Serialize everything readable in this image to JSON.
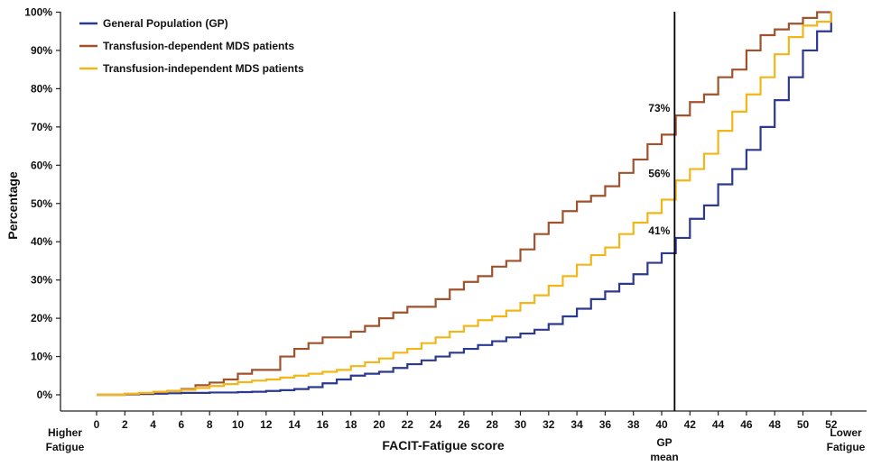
{
  "chart_data": {
    "type": "line",
    "step": true,
    "xlabel": "FACIT-Fatigue score",
    "ylabel": "Percentage",
    "xlim": [
      0,
      52
    ],
    "ylim": [
      0,
      100
    ],
    "x_ticks": [
      0,
      2,
      4,
      6,
      8,
      10,
      12,
      14,
      16,
      18,
      20,
      22,
      24,
      26,
      28,
      30,
      32,
      34,
      36,
      38,
      40,
      42,
      44,
      46,
      48,
      50,
      52
    ],
    "y_ticks": [
      0,
      10,
      20,
      30,
      40,
      50,
      60,
      70,
      80,
      90,
      100
    ],
    "y_tick_labels": [
      "0%",
      "10%",
      "20%",
      "30%",
      "40%",
      "50%",
      "60%",
      "70%",
      "80%",
      "90%",
      "100%"
    ],
    "grid": false,
    "legend_position": "top-left",
    "left_end_label": [
      "Higher",
      "Fatigue"
    ],
    "right_end_label": [
      "Lower",
      "Fatigue"
    ],
    "reference_line": {
      "x": 41,
      "label": [
        "GP",
        "mean"
      ]
    },
    "annotations": [
      {
        "text": "73%",
        "x": 41,
        "y": 73
      },
      {
        "text": "56%",
        "x": 41,
        "y": 56
      },
      {
        "text": "41%",
        "x": 41,
        "y": 41
      }
    ],
    "series": [
      {
        "name": "General Population (GP)",
        "color": "#2b3990",
        "x": [
          0,
          1,
          2,
          3,
          4,
          5,
          6,
          7,
          8,
          9,
          10,
          11,
          12,
          13,
          14,
          15,
          16,
          17,
          18,
          19,
          20,
          21,
          22,
          23,
          24,
          25,
          26,
          27,
          28,
          29,
          30,
          31,
          32,
          33,
          34,
          35,
          36,
          37,
          38,
          39,
          40,
          41,
          42,
          43,
          44,
          45,
          46,
          47,
          48,
          49,
          50,
          51,
          52
        ],
        "values": [
          0,
          0,
          0.1,
          0.2,
          0.3,
          0.4,
          0.5,
          0.5,
          0.6,
          0.6,
          0.7,
          0.8,
          1.0,
          1.2,
          1.5,
          2.0,
          3.0,
          4.0,
          5.0,
          5.5,
          6.0,
          7.0,
          8.0,
          9.0,
          10.0,
          11.0,
          12.0,
          13.0,
          14.0,
          15.0,
          16.0,
          17.0,
          18.5,
          20.5,
          22.5,
          25.0,
          27.0,
          29.0,
          31.5,
          34.5,
          37.0,
          41.0,
          46.0,
          49.5,
          55.0,
          59.0,
          64.0,
          70.0,
          77.0,
          83.0,
          90.0,
          95.0,
          100.0
        ]
      },
      {
        "name": "Transfusion-dependent MDS patients",
        "color": "#a0522d",
        "x": [
          0,
          1,
          2,
          3,
          4,
          5,
          6,
          7,
          8,
          9,
          10,
          11,
          12,
          13,
          14,
          15,
          16,
          17,
          18,
          19,
          20,
          21,
          22,
          23,
          24,
          25,
          26,
          27,
          28,
          29,
          30,
          31,
          32,
          33,
          34,
          35,
          36,
          37,
          38,
          39,
          40,
          41,
          42,
          43,
          44,
          45,
          46,
          47,
          48,
          49,
          50,
          51,
          52
        ],
        "values": [
          0,
          0,
          0.2,
          0.4,
          0.7,
          1.0,
          1.5,
          2.5,
          3.2,
          4.0,
          5.5,
          6.5,
          6.5,
          10.0,
          12.0,
          13.5,
          15.0,
          15.0,
          16.5,
          18.0,
          20.0,
          21.5,
          23.0,
          23.0,
          25.0,
          27.5,
          29.5,
          31.0,
          33.5,
          35.0,
          38.0,
          42.0,
          45.0,
          48.0,
          50.5,
          52.0,
          54.5,
          58.0,
          61.5,
          65.5,
          68.0,
          73.0,
          76.5,
          78.5,
          83.0,
          85.0,
          90.0,
          94.0,
          95.5,
          97.0,
          98.5,
          100.0,
          100.0
        ]
      },
      {
        "name": "Transfusion-independent MDS patients",
        "color": "#f2b619",
        "x": [
          0,
          1,
          2,
          3,
          4,
          5,
          6,
          7,
          8,
          9,
          10,
          11,
          12,
          13,
          14,
          15,
          16,
          17,
          18,
          19,
          20,
          21,
          22,
          23,
          24,
          25,
          26,
          27,
          28,
          29,
          30,
          31,
          32,
          33,
          34,
          35,
          36,
          37,
          38,
          39,
          40,
          41,
          42,
          43,
          44,
          45,
          46,
          47,
          48,
          49,
          50,
          51,
          52
        ],
        "values": [
          0,
          0,
          0.3,
          0.5,
          0.8,
          1.0,
          1.3,
          1.8,
          2.3,
          2.8,
          3.3,
          3.7,
          4.0,
          4.5,
          5.0,
          5.5,
          6.0,
          6.5,
          7.5,
          8.5,
          9.5,
          11.0,
          12.0,
          13.5,
          15.0,
          16.5,
          18.0,
          19.5,
          20.5,
          22.0,
          24.0,
          26.0,
          28.5,
          31.0,
          34.0,
          36.5,
          38.5,
          42.0,
          45.0,
          47.5,
          51.0,
          56.0,
          59.0,
          63.0,
          69.0,
          74.0,
          78.5,
          83.0,
          89.0,
          93.5,
          96.5,
          97.5,
          100.0
        ]
      }
    ]
  }
}
